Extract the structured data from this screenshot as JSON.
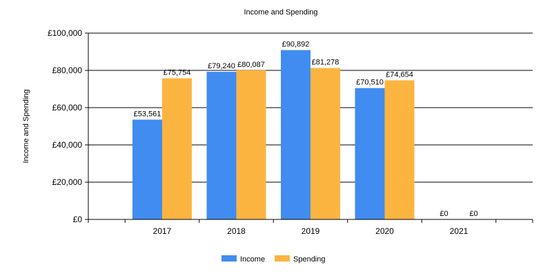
{
  "chart_data": {
    "type": "bar",
    "title": "Income and Spending",
    "xlabel": "",
    "ylabel": "Income and Spending",
    "categories": [
      "2017",
      "2018",
      "2019",
      "2020",
      "2021"
    ],
    "series": [
      {
        "name": "Income",
        "color": "#418cf0",
        "values": [
          53561,
          79240,
          90892,
          70510,
          0
        ],
        "labels": [
          "£53,561",
          "£79,240",
          "£90,892",
          "£70,510",
          "£0"
        ]
      },
      {
        "name": "Spending",
        "color": "#fcb441",
        "values": [
          75754,
          80087,
          81278,
          74654,
          0
        ],
        "labels": [
          "£75,754",
          "£80,087",
          "£81,278",
          "£74,654",
          "£0"
        ]
      }
    ],
    "ylim": [
      0,
      100000
    ],
    "yticks": [
      0,
      20000,
      40000,
      60000,
      80000,
      100000
    ],
    "ytick_labels": [
      "£0",
      "£20,000",
      "£40,000",
      "£60,000",
      "£80,000",
      "£100,000"
    ],
    "grid": true,
    "legend_position": "bottom-center"
  }
}
